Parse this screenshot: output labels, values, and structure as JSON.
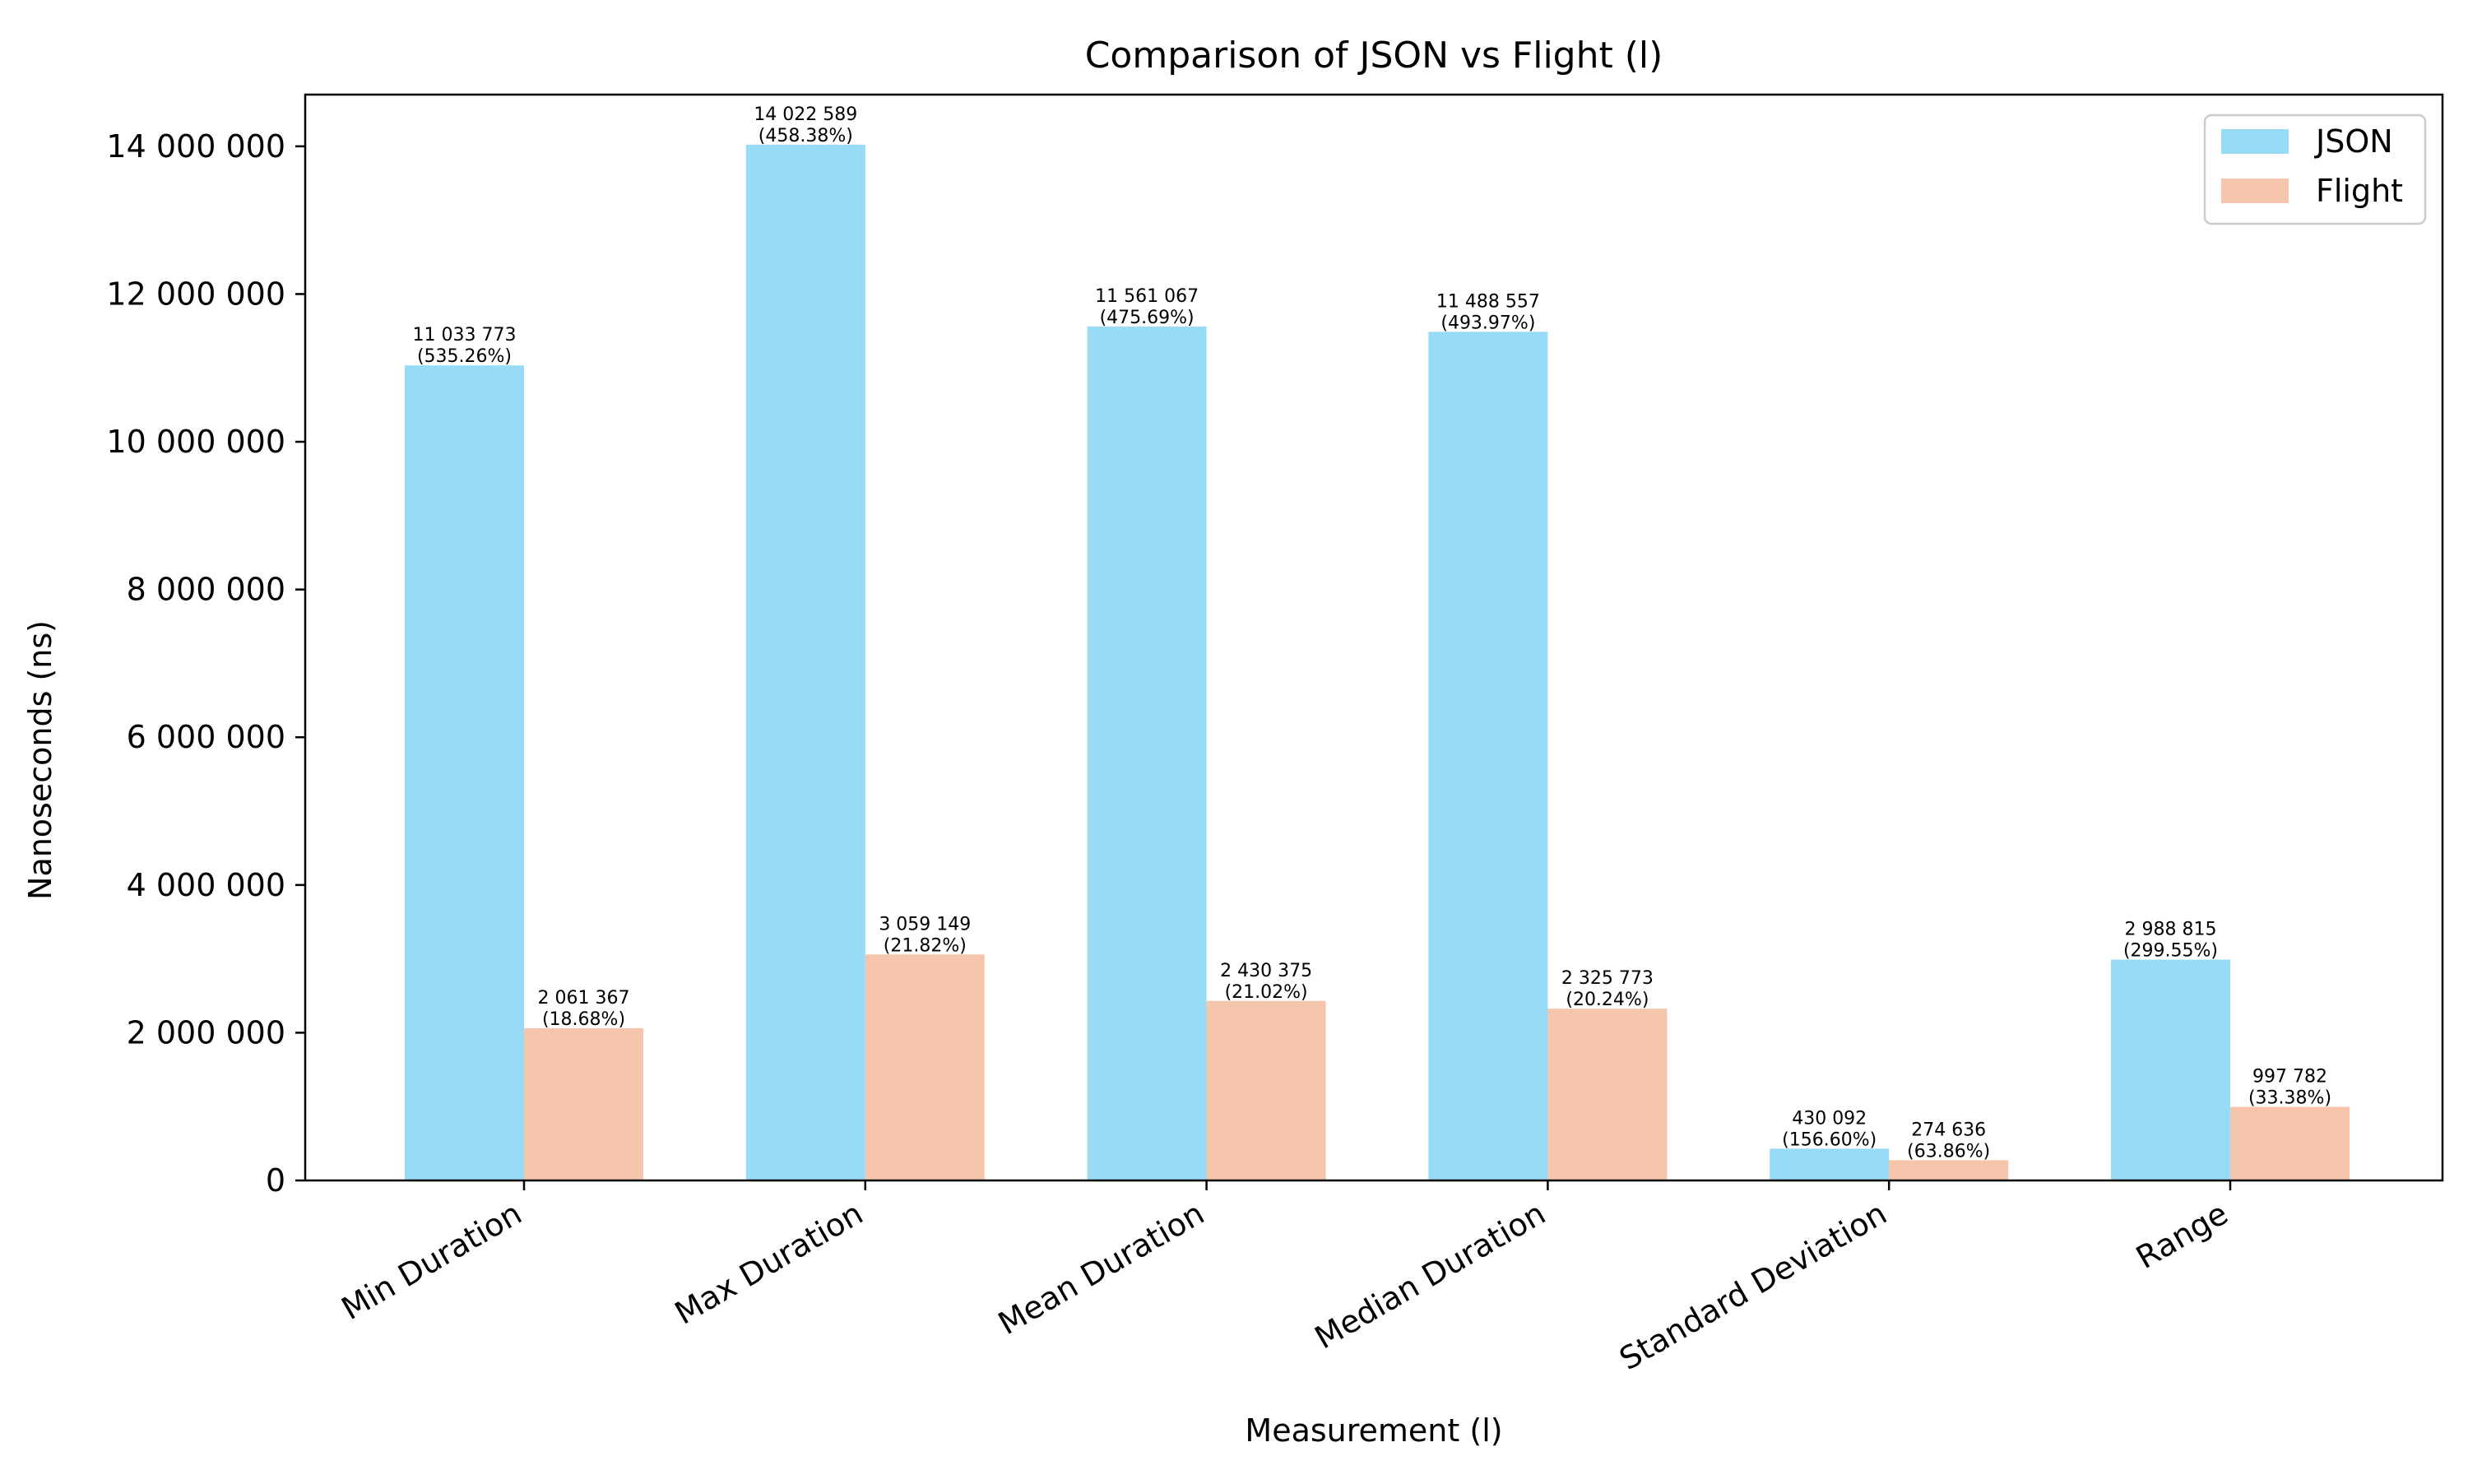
{
  "chart_data": {
    "type": "bar",
    "title": "Comparison of JSON vs Flight (l)",
    "xlabel": "Measurement (l)",
    "ylabel": "Nanoseconds (ns)",
    "ylim": [
      0,
      14700000
    ],
    "yticks": [
      0,
      2000000,
      4000000,
      6000000,
      8000000,
      10000000,
      12000000,
      14000000
    ],
    "ytick_labels": [
      "0",
      "2 000 000",
      "4 000 000",
      "6 000 000",
      "8 000 000",
      "10 000 000",
      "12 000 000",
      "14 000 000"
    ],
    "categories": [
      "Min Duration",
      "Max Duration",
      "Mean Duration",
      "Median Duration",
      "Standard Deviation",
      "Range"
    ],
    "series": [
      {
        "name": "JSON",
        "color": "#97dbf6",
        "values": [
          11033773,
          14022589,
          11561067,
          11488557,
          430092,
          2988815
        ],
        "value_labels": [
          "11 033 773",
          "14 022 589",
          "11 561 067",
          "11 488 557",
          "430 092",
          "2 988 815"
        ],
        "percent_labels": [
          "(535.26%)",
          "(458.38%)",
          "(475.69%)",
          "(493.97%)",
          "(156.60%)",
          "(299.55%)"
        ]
      },
      {
        "name": "Flight",
        "color": "#f5c6ab",
        "values": [
          2061367,
          3059149,
          2430375,
          2325773,
          274636,
          997782
        ],
        "value_labels": [
          "2 061 367",
          "3 059 149",
          "2 430 375",
          "2 325 773",
          "274 636",
          "997 782"
        ],
        "percent_labels": [
          "(18.68%)",
          "(21.82%)",
          "(21.02%)",
          "(20.24%)",
          "(63.86%)",
          "(33.38%)"
        ]
      }
    ],
    "legend_position": "top-right",
    "grid": false
  }
}
